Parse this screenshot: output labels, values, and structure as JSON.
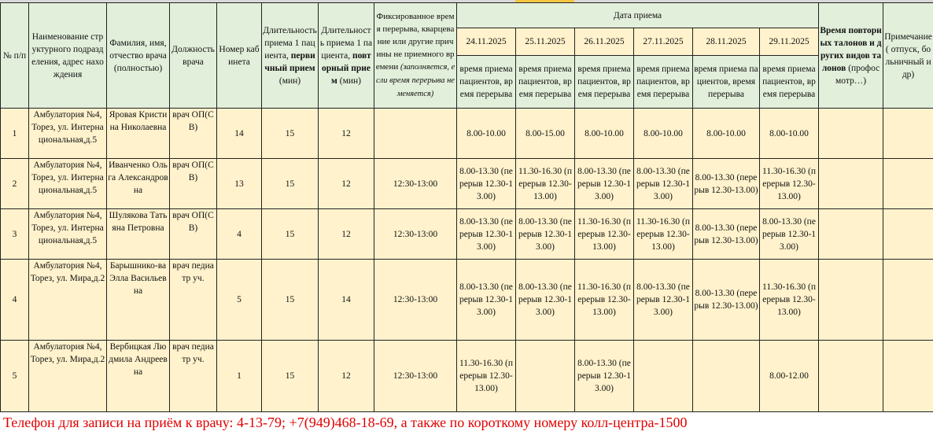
{
  "colors": {
    "header_bg": "#e2efda",
    "data_bg": "#fff2cc",
    "footer_text": "#e00000"
  },
  "headers": {
    "num": "№ п/п",
    "unit": "Наименование структурного подразделения, адрес нахождения",
    "name": "Фамилия, имя, отчество врача (полностью)",
    "position": "Должность врача",
    "room": "Номер кабинета",
    "primary_pre": "Длительность приема 1 пациента,",
    "primary_bold": "первичный прием",
    "primary_post": "(мин)",
    "repeat_pre": "Длительность приема 1 пациента,",
    "repeat_bold": "повторный прием",
    "repeat_post": "(мин)",
    "break_main": "Фиксированное время перерыва, кварцевание или другие причины не приемного времени",
    "break_note": "(заполняется, если время перерыва не меняется)",
    "date_group": "Дата  приема",
    "dates": [
      "24.11.2025",
      "25.11.2025",
      "26.11.2025",
      "27.11.2025",
      "28.11.2025",
      "29.11.2025"
    ],
    "date_sub": "время приема пациентов, время перерыва",
    "repeat_tickets_bold": "Время повторных талонов и других видов талонов",
    "repeat_tickets_post": "(профосмотр…)",
    "note": "Примечание ( отпуск, больничный и др)"
  },
  "rows": [
    {
      "num": "1",
      "unit": "Амбулатория №4, Торез, ул. Интернациональная,д.5",
      "name": "Яровая Кристина Николаевна",
      "position": "врач ОП(СВ)",
      "room": "14",
      "primary": "15",
      "repeat": "12",
      "break": "",
      "schedule": [
        "8.00-10.00",
        "8.00-15.00",
        "8.00-10.00",
        "8.00-10.00",
        "8.00-10.00",
        "8.00-10.00"
      ],
      "tickets": "",
      "note": ""
    },
    {
      "num": "2",
      "unit": "Амбулатория №4, Торез, ул. Интернациональная,д.5",
      "name": "Иванченко Ольга Александровна",
      "position": "врач ОП(СВ)",
      "room": "13",
      "primary": "15",
      "repeat": "12",
      "break": "12:30-13:00",
      "schedule": [
        "8.00-13.30 (перерыв 12.30-13.00)",
        "11.30-16.30 (перерыв 12.30-13.00)",
        "8.00-13.30 (перерыв 12.30-13.00)",
        "8.00-13.30 (перерыв 12.30-13.00)",
        "8.00-13.30 (перерыв 12.30-13.00)",
        "11.30-16.30 (перерыв 12.30-13.00)"
      ],
      "tickets": "",
      "note": ""
    },
    {
      "num": "3",
      "unit": "Амбулатория №4, Торез, ул. Интернациональная,д.5",
      "name": "Шулякова Татьяна Петровна",
      "position": "врач ОП(СВ)",
      "room": "4",
      "primary": "15",
      "repeat": "12",
      "break": "12:30-13:00",
      "schedule": [
        "8.00-13.30 (перерыв 12.30-13.00)",
        "8.00-13.30 (перерыв 12.30-13.00)",
        "11.30-16.30 (перерыв 12.30-13.00)",
        "11.30-16.30 (перерыв 12.30-13.00)",
        "8.00-13.30 (перерыв 12.30-13.00)",
        "8.00-13.30 (перерыв 12.30-13.00)"
      ],
      "tickets": "",
      "note": ""
    },
    {
      "num": "4",
      "unit": "Амбулатория №4, Торез, ул. Мира,д.2",
      "name": "Барышнико-ва Элла Васильевна",
      "position": "врач педиатр уч.",
      "room": "5",
      "primary": "15",
      "repeat": "14",
      "break": "12:30-13:00",
      "schedule": [
        "8.00-13.30 (перерыв 12.30-13.00)",
        "8.00-13.30 (перерыв 12.30-13.00)",
        "11.30-16.30 (перерыв 12.30-13.00)",
        "8.00-13.30 (перерыв 12.30-13.00)",
        "8.00-13.30 (перерыв 12.30-13.00)",
        "11.30-16.30 (перерыв 12.30-13.00)"
      ],
      "tickets": "",
      "note": ""
    },
    {
      "num": "5",
      "unit": "Амбулатория №4, Торез, ул. Мира,д.2",
      "name": "Вербицкая Людмила Андреевна",
      "position": "врач педиатр уч.",
      "room": "1",
      "primary": "15",
      "repeat": "12",
      "break": "12:30-13:00",
      "schedule": [
        "11.30-16.30 (перерыв 12.30-13.00)",
        "",
        "8.00-13.30 (перерыв 12.30-13.00)",
        "",
        "",
        "8.00-12.00"
      ],
      "tickets": "",
      "note": ""
    }
  ],
  "footer": "Телефон для записи на приём к врачу: 4-13-79;  +7(949)468-18-69, а также по короткому номеру колл-центра-1500"
}
